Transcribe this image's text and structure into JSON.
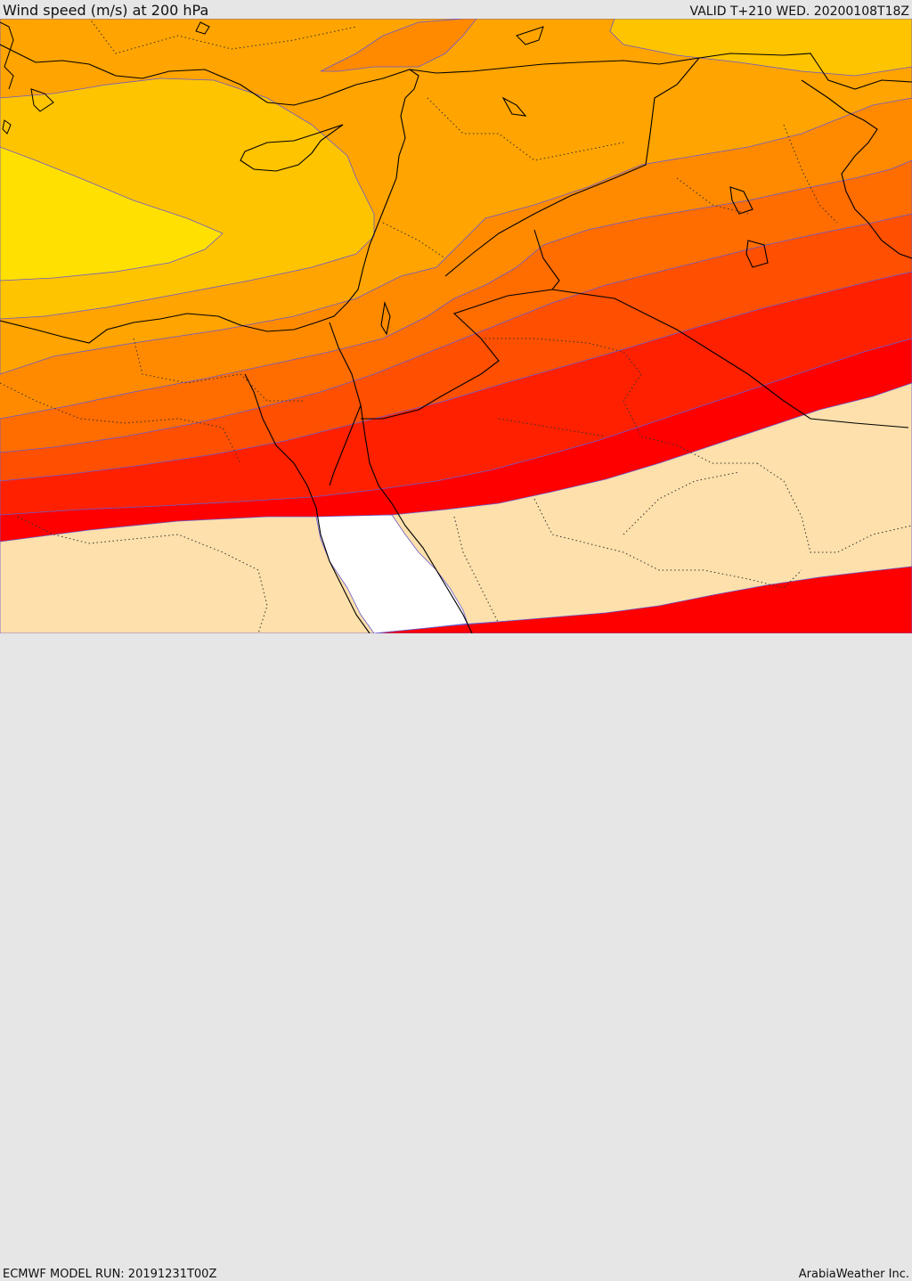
{
  "header": {
    "title": "Wind speed (m/s) at 200 hPa",
    "valid": "VALID T+210 WED. 20200108T18Z"
  },
  "footer": {
    "model_run": "ECMWF MODEL RUN: 20191231T00Z",
    "credit": "ArabiaWeather Inc."
  },
  "map": {
    "field": "wind-speed-200hPa",
    "palette": {
      "band_1": "#ffe000",
      "band_2": "#ffc400",
      "band_3": "#ffa400",
      "band_4": "#ff8a00",
      "band_5": "#ff6c00",
      "band_6": "#ff4f00",
      "band_7": "#ff2000",
      "band_8": "#ff0000",
      "low_wind": "#fde0ab",
      "calm": "#ffffff",
      "contour": "#6a5acd",
      "border": "#000000"
    }
  }
}
